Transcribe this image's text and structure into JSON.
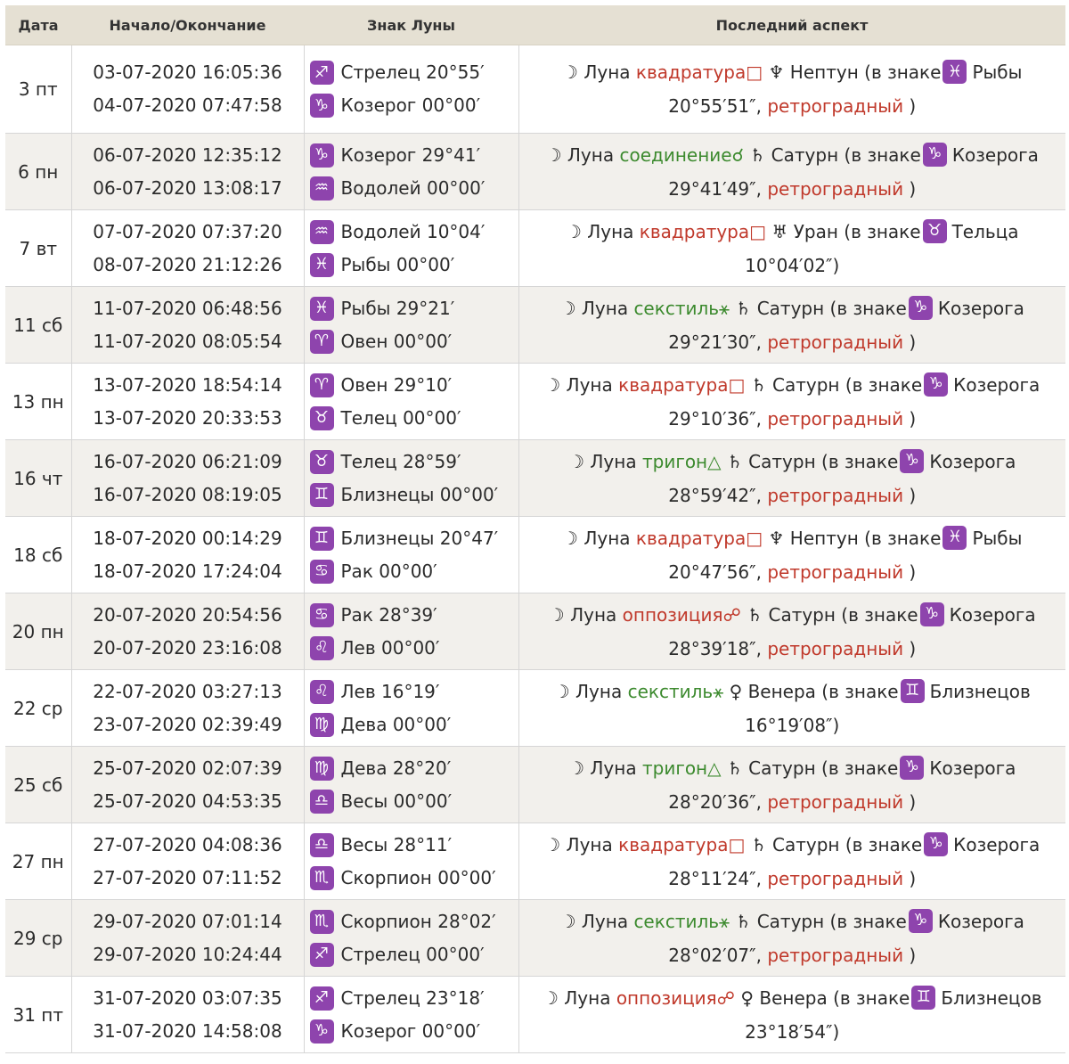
{
  "header": {
    "date": "Дата",
    "times": "Начало/Окончание",
    "sign": "Знак Луны",
    "aspect": "Последний аспект"
  },
  "colors": {
    "header_bg": "#e5e0d3",
    "zodiac_box": "#8e44ad",
    "red_aspect": "#c0392b",
    "green_aspect": "#3c8a2e",
    "row_alt": "#f2f0ec"
  },
  "rows": [
    {
      "date": "3 пт",
      "start": "03-07-2020 16:05:36",
      "end": "04-07-2020 07:47:58",
      "s1_glyph": "♐",
      "s1_text": "Стрелец 20°55′",
      "s2_glyph": "♑",
      "s2_text": "Козерог 00°00′",
      "moon": "☽ Луна",
      "aspect_name": "квадратура",
      "aspect_color": "red",
      "aspect_symbol": "□",
      "planet": "♆ Нептун (в знаке",
      "pglyph": "♓",
      "psign": "Рыбы 20°55′51″,",
      "retro": "ретроградный",
      "tail": ")"
    },
    {
      "date": "6 пн",
      "start": "06-07-2020 12:35:12",
      "end": "06-07-2020 13:08:17",
      "s1_glyph": "♑",
      "s1_text": "Козерог 29°41′",
      "s2_glyph": "♒",
      "s2_text": "Водолей 00°00′",
      "moon": "☽ Луна",
      "aspect_name": "соединение",
      "aspect_color": "green",
      "aspect_symbol": "☌",
      "planet": "♄ Сатурн (в знаке",
      "pglyph": "♑",
      "psign": "Козерога 29°41′49″,",
      "retro": "ретроградный",
      "tail": ")"
    },
    {
      "date": "7 вт",
      "start": "07-07-2020 07:37:20",
      "end": "08-07-2020 21:12:26",
      "s1_glyph": "♒",
      "s1_text": "Водолей 10°04′",
      "s2_glyph": "♓",
      "s2_text": "Рыбы 00°00′",
      "moon": "☽ Луна",
      "aspect_name": "квадратура",
      "aspect_color": "red",
      "aspect_symbol": "□",
      "planet": "♅ Уран (в знаке",
      "pglyph": "♉",
      "psign": "Тельца 10°04′02″)",
      "retro": "",
      "tail": ""
    },
    {
      "date": "11 сб",
      "start": "11-07-2020 06:48:56",
      "end": "11-07-2020 08:05:54",
      "s1_glyph": "♓",
      "s1_text": "Рыбы 29°21′",
      "s2_glyph": "♈",
      "s2_text": "Овен 00°00′",
      "moon": "☽ Луна",
      "aspect_name": "секстиль",
      "aspect_color": "green",
      "aspect_symbol": "⚹",
      "planet": "♄ Сатурн (в знаке",
      "pglyph": "♑",
      "psign": "Козерога 29°21′30″,",
      "retro": "ретроградный",
      "tail": ")"
    },
    {
      "date": "13 пн",
      "start": "13-07-2020 18:54:14",
      "end": "13-07-2020 20:33:53",
      "s1_glyph": "♈",
      "s1_text": "Овен 29°10′",
      "s2_glyph": "♉",
      "s2_text": "Телец 00°00′",
      "moon": "☽ Луна",
      "aspect_name": "квадратура",
      "aspect_color": "red",
      "aspect_symbol": "□",
      "planet": "♄ Сатурн (в знаке",
      "pglyph": "♑",
      "psign": "Козерога 29°10′36″,",
      "retro": "ретроградный",
      "tail": ")"
    },
    {
      "date": "16 чт",
      "start": "16-07-2020 06:21:09",
      "end": "16-07-2020 08:19:05",
      "s1_glyph": "♉",
      "s1_text": "Телец 28°59′",
      "s2_glyph": "♊",
      "s2_text": "Близнецы 00°00′",
      "moon": "☽ Луна",
      "aspect_name": "тригон",
      "aspect_color": "green",
      "aspect_symbol": "△",
      "planet": "♄ Сатурн (в знаке",
      "pglyph": "♑",
      "psign": "Козерога 28°59′42″,",
      "retro": "ретроградный",
      "tail": ")"
    },
    {
      "date": "18 сб",
      "start": "18-07-2020 00:14:29",
      "end": "18-07-2020 17:24:04",
      "s1_glyph": "♊",
      "s1_text": "Близнецы 20°47′",
      "s2_glyph": "♋",
      "s2_text": "Рак 00°00′",
      "moon": "☽ Луна",
      "aspect_name": "квадратура",
      "aspect_color": "red",
      "aspect_symbol": "□",
      "planet": "♆ Нептун (в знаке",
      "pglyph": "♓",
      "psign": "Рыбы 20°47′56″,",
      "retro": "ретроградный",
      "tail": ")"
    },
    {
      "date": "20 пн",
      "start": "20-07-2020 20:54:56",
      "end": "20-07-2020 23:16:08",
      "s1_glyph": "♋",
      "s1_text": "Рак 28°39′",
      "s2_glyph": "♌",
      "s2_text": "Лев 00°00′",
      "moon": "☽ Луна",
      "aspect_name": "оппозиция",
      "aspect_color": "red",
      "aspect_symbol": "☍",
      "planet": "♄ Сатурн (в знаке",
      "pglyph": "♑",
      "psign": "Козерога 28°39′18″,",
      "retro": "ретроградный",
      "tail": ")"
    },
    {
      "date": "22 ср",
      "start": "22-07-2020 03:27:13",
      "end": "23-07-2020 02:39:49",
      "s1_glyph": "♌",
      "s1_text": "Лев 16°19′",
      "s2_glyph": "♍",
      "s2_text": "Дева 00°00′",
      "moon": "☽ Луна",
      "aspect_name": "секстиль",
      "aspect_color": "green",
      "aspect_symbol": "⚹",
      "planet": "♀ Венера (в знаке",
      "pglyph": "♊",
      "psign": "Близнецов 16°19′08″)",
      "retro": "",
      "tail": ""
    },
    {
      "date": "25 сб",
      "start": "25-07-2020 02:07:39",
      "end": "25-07-2020 04:53:35",
      "s1_glyph": "♍",
      "s1_text": "Дева 28°20′",
      "s2_glyph": "♎",
      "s2_text": "Весы 00°00′",
      "moon": "☽ Луна",
      "aspect_name": "тригон",
      "aspect_color": "green",
      "aspect_symbol": "△",
      "planet": "♄ Сатурн (в знаке",
      "pglyph": "♑",
      "psign": "Козерога 28°20′36″,",
      "retro": "ретроградный",
      "tail": ")"
    },
    {
      "date": "27 пн",
      "start": "27-07-2020 04:08:36",
      "end": "27-07-2020 07:11:52",
      "s1_glyph": "♎",
      "s1_text": "Весы 28°11′",
      "s2_glyph": "♏",
      "s2_text": "Скорпион 00°00′",
      "moon": "☽ Луна",
      "aspect_name": "квадратура",
      "aspect_color": "red",
      "aspect_symbol": "□",
      "planet": "♄ Сатурн (в знаке",
      "pglyph": "♑",
      "psign": "Козерога 28°11′24″,",
      "retro": "ретроградный",
      "tail": ")"
    },
    {
      "date": "29 ср",
      "start": "29-07-2020 07:01:14",
      "end": "29-07-2020 10:24:44",
      "s1_glyph": "♏",
      "s1_text": "Скорпион 28°02′",
      "s2_glyph": "♐",
      "s2_text": "Стрелец 00°00′",
      "moon": "☽ Луна",
      "aspect_name": "секстиль",
      "aspect_color": "green",
      "aspect_symbol": "⚹",
      "planet": "♄ Сатурн (в знаке",
      "pglyph": "♑",
      "psign": "Козерога 28°02′07″,",
      "retro": "ретроградный",
      "tail": ")"
    },
    {
      "date": "31 пт",
      "start": "31-07-2020 03:07:35",
      "end": "31-07-2020 14:58:08",
      "s1_glyph": "♐",
      "s1_text": "Стрелец 23°18′",
      "s2_glyph": "♑",
      "s2_text": "Козерог 00°00′",
      "moon": "☽ Луна",
      "aspect_name": "оппозиция",
      "aspect_color": "red",
      "aspect_symbol": "☍",
      "planet": "♀ Венера (в знаке",
      "pglyph": "♊",
      "psign": "Близнецов 23°18′54″)",
      "retro": "",
      "tail": ""
    }
  ]
}
